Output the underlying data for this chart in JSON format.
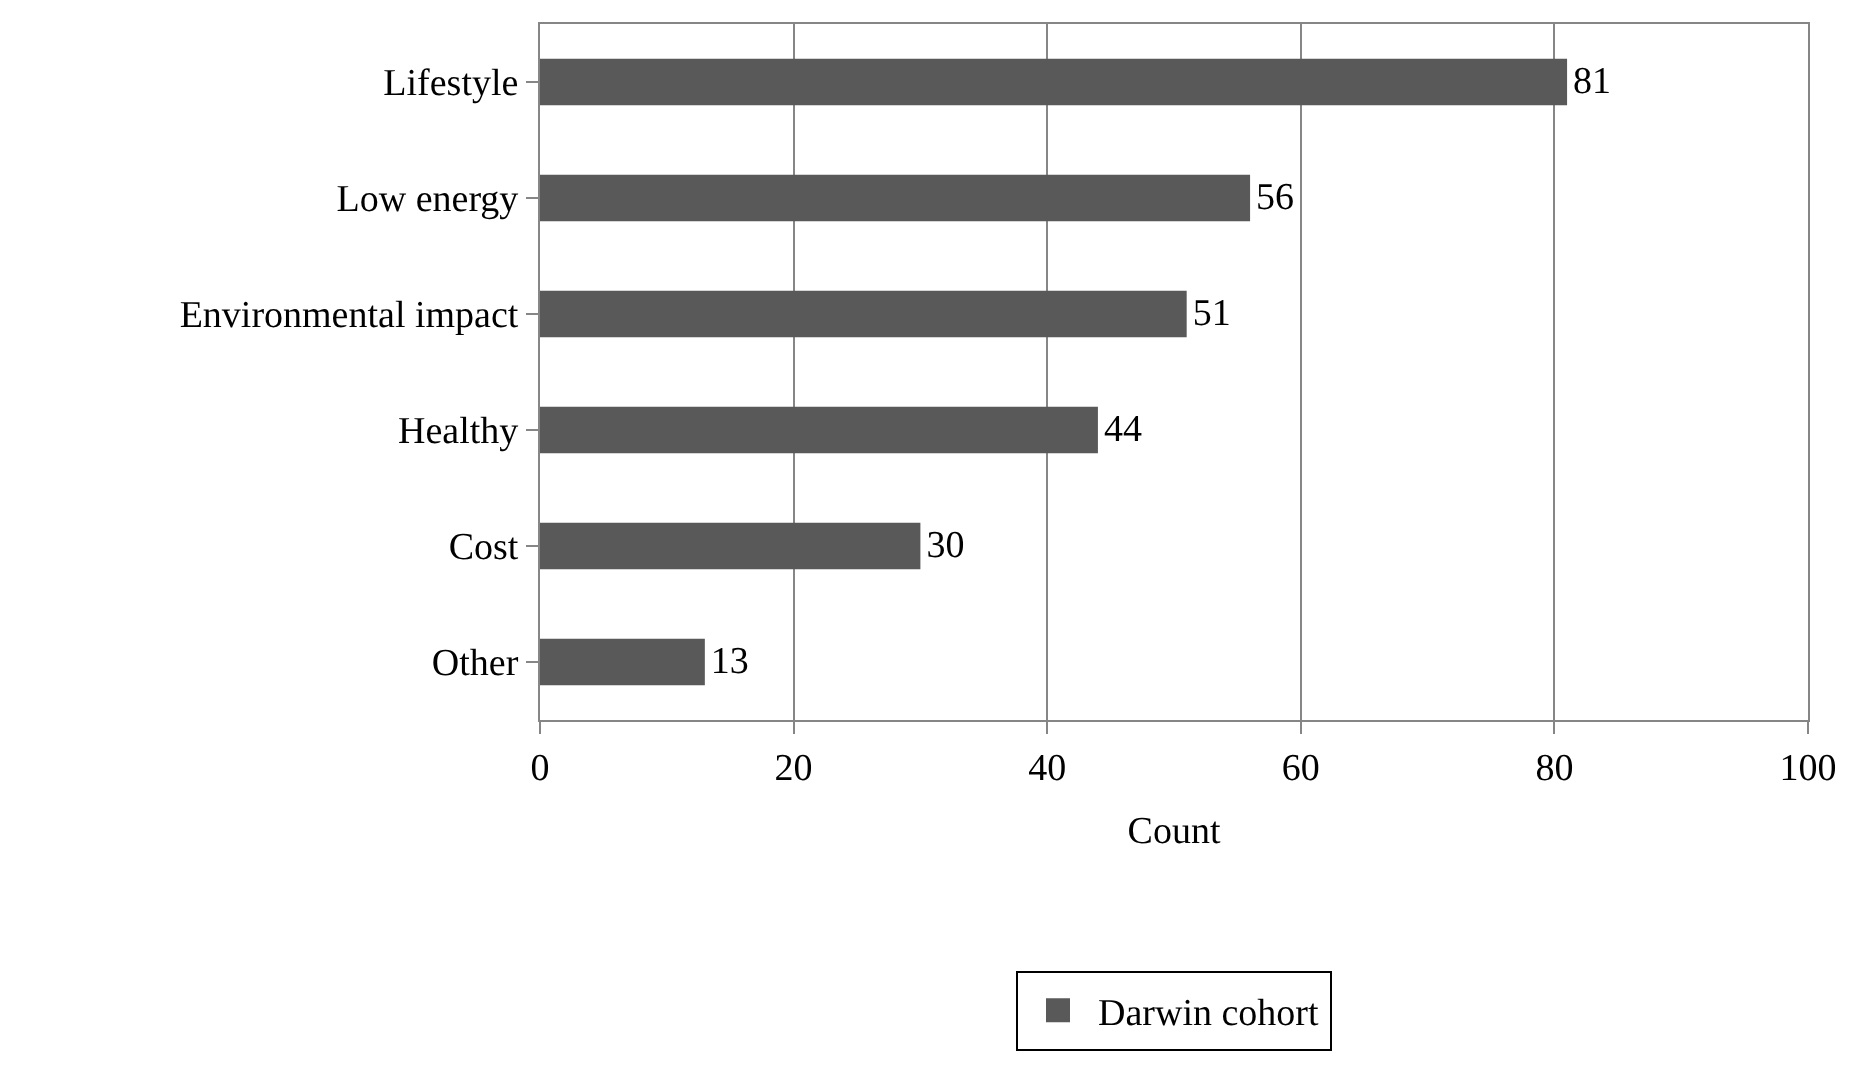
{
  "chart_data": {
    "type": "bar",
    "orientation": "horizontal",
    "xlabel": "Count",
    "categories": [
      "Lifestyle",
      "Low energy",
      "Environmental impact",
      "Healthy",
      "Cost",
      "Other"
    ],
    "series": [
      {
        "name": "Darwin cohort",
        "color": "#595959",
        "values": [
          81,
          56,
          51,
          44,
          30,
          13
        ]
      }
    ],
    "xlim": [
      0,
      100
    ],
    "xticks": [
      0,
      20,
      40,
      60,
      80,
      100
    ],
    "grid": "x",
    "legend": "bottom",
    "data_labels": true
  }
}
